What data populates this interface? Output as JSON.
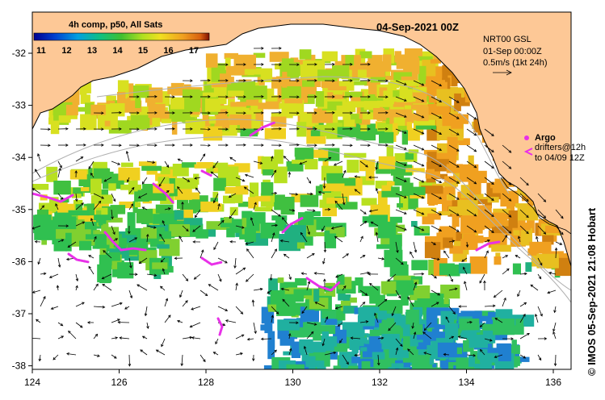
{
  "map": {
    "date_title": "04-Sep-2021 00Z",
    "product_label": "4h comp, p50, All Sats",
    "colorbar_ticks": [
      "11",
      "12",
      "13",
      "14",
      "15",
      "16",
      "17"
    ],
    "current_info": {
      "line1": "NRT00 GSL",
      "line2": "01-Sep 00:00Z",
      "line3": "0.5m/s (1kt 24h)"
    },
    "legend": {
      "argo_label": "Argo",
      "drifters_line1": "drifters@12h",
      "drifters_line2": "to 04/09 12Z"
    },
    "credit": "© IMOS 05-Sep-2021 21:08 Hobart",
    "x_ticks": [
      "124",
      "126",
      "128",
      "130",
      "132",
      "134",
      "136"
    ],
    "y_ticks": [
      "-32",
      "-33",
      "-34",
      "-35",
      "-36",
      "-37",
      "-38"
    ],
    "colors": {
      "land": "#fdc896",
      "drifter": "#e830e8",
      "sst_low": "#1050c0",
      "sst_mid": "#20c040",
      "sst_high": "#e87010"
    }
  }
}
